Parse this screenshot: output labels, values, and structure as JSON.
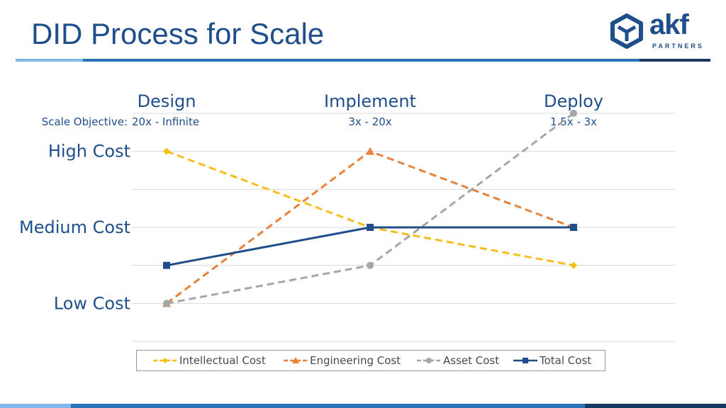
{
  "slide": {
    "title": "DID Process for Scale"
  },
  "logo": {
    "word": "akf",
    "sub": "PARTNERS"
  },
  "colors": {
    "title": "#1f4e8c",
    "intellectual": "#f5be1a",
    "engineering": "#e8823a",
    "asset": "#a6a6a6",
    "total": "#1f4e8c",
    "grid": "#d9d9d9"
  },
  "chart_data": {
    "type": "line",
    "categories": [
      "Design",
      "Implement",
      "Deploy"
    ],
    "category_subtitles": [
      "20x - Infinite",
      "3x - 20x",
      "1.5x - 3x"
    ],
    "subtitle_prefix": "Scale Objective:",
    "y_labels": [
      {
        "label": "High Cost",
        "value": 4
      },
      {
        "label": "Medium Cost",
        "value": 2
      },
      {
        "label": "Low Cost",
        "value": 0
      }
    ],
    "ylim": [
      -1,
      5
    ],
    "grid": true,
    "legend_position": "bottom",
    "series": [
      {
        "name": "Intellectual Cost",
        "values": [
          4,
          2,
          1
        ],
        "marker": "diamond",
        "dash": true,
        "color": "#f5be1a"
      },
      {
        "name": "Engineering Cost",
        "values": [
          0,
          4,
          2
        ],
        "marker": "triangle",
        "dash": true,
        "color": "#e8823a"
      },
      {
        "name": "Asset Cost",
        "values": [
          0,
          1,
          5
        ],
        "marker": "circle",
        "dash": true,
        "color": "#a6a6a6"
      },
      {
        "name": "Total Cost",
        "values": [
          1,
          2,
          2
        ],
        "marker": "square",
        "dash": false,
        "color": "#1f4e8c"
      }
    ]
  }
}
